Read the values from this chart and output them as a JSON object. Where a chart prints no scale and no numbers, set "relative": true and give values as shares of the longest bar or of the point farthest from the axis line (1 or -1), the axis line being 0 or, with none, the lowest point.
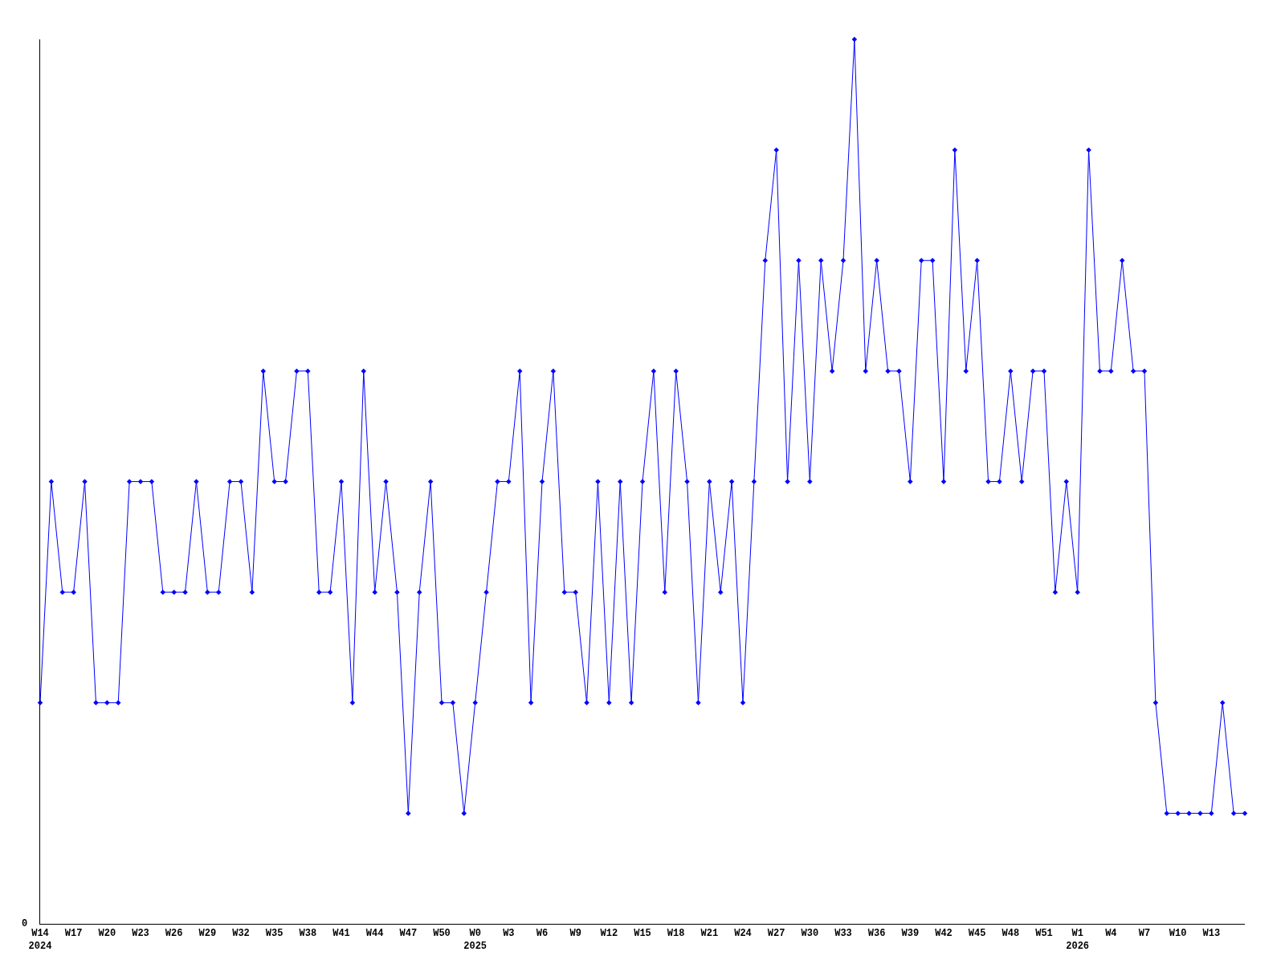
{
  "chart_data": {
    "type": "line",
    "relative": true,
    "marker": "diamond",
    "line_style": "solid",
    "grid": false,
    "annotations": [
      "0"
    ],
    "categories": [
      "W14\n2024",
      null,
      null,
      "W17",
      null,
      null,
      "W20",
      null,
      null,
      "W23",
      null,
      null,
      "W26",
      null,
      null,
      "W29",
      null,
      null,
      "W32",
      null,
      null,
      "W35",
      null,
      null,
      "W38",
      null,
      null,
      "W41",
      null,
      null,
      "W44",
      null,
      null,
      "W47",
      null,
      null,
      "W50",
      null,
      null,
      "W0\n2025",
      null,
      null,
      "W3",
      null,
      null,
      "W6",
      null,
      null,
      "W9",
      null,
      null,
      "W12",
      null,
      null,
      "W15",
      null,
      null,
      "W18",
      null,
      null,
      "W21",
      null,
      null,
      "W24",
      null,
      null,
      "W27",
      null,
      null,
      "W30",
      null,
      null,
      "W33",
      null,
      null,
      "W36",
      null,
      null,
      "W39",
      null,
      null,
      "W42",
      null,
      null,
      "W45",
      null,
      null,
      "W48",
      null,
      null,
      "W51",
      null,
      null,
      "W1\n2026",
      null,
      null,
      "W4",
      null,
      null,
      "W7",
      null,
      null,
      "W10",
      null,
      null,
      "W13",
      null,
      null,
      null
    ],
    "series": [
      {
        "color": "#0000ff",
        "values": [
          0.25,
          0.5,
          0.375,
          0.375,
          0.5,
          0.25,
          0.25,
          0.25,
          0.5,
          0.5,
          0.5,
          0.375,
          0.375,
          0.375,
          0.5,
          0.375,
          0.375,
          0.5,
          0.5,
          0.375,
          0.625,
          0.5,
          0.5,
          0.625,
          0.625,
          0.375,
          0.375,
          0.5,
          0.25,
          0.625,
          0.375,
          0.5,
          0.375,
          0.125,
          0.375,
          0.5,
          0.25,
          0.25,
          0.125,
          0.25,
          0.375,
          0.5,
          0.5,
          0.625,
          0.25,
          0.5,
          0.625,
          0.375,
          0.375,
          0.25,
          0.5,
          0.25,
          0.5,
          0.25,
          0.5,
          0.625,
          0.375,
          0.625,
          0.5,
          0.25,
          0.5,
          0.375,
          0.5,
          0.25,
          0.5,
          0.75,
          0.875,
          0.5,
          0.75,
          0.5,
          0.75,
          0.625,
          0.75,
          1,
          0.625,
          0.75,
          0.625,
          0.625,
          0.5,
          0.75,
          0.75,
          0.5,
          0.875,
          0.625,
          0.75,
          0.5,
          0.5,
          0.625,
          0.5,
          0.625,
          0.625,
          0.375,
          0.5,
          0.375,
          0.875,
          0.625,
          0.625,
          0.75,
          0.625,
          0.625,
          0.25,
          0.125,
          0.125,
          0.125,
          0.125,
          0.125,
          0.25,
          0.125,
          0.125
        ]
      }
    ]
  }
}
